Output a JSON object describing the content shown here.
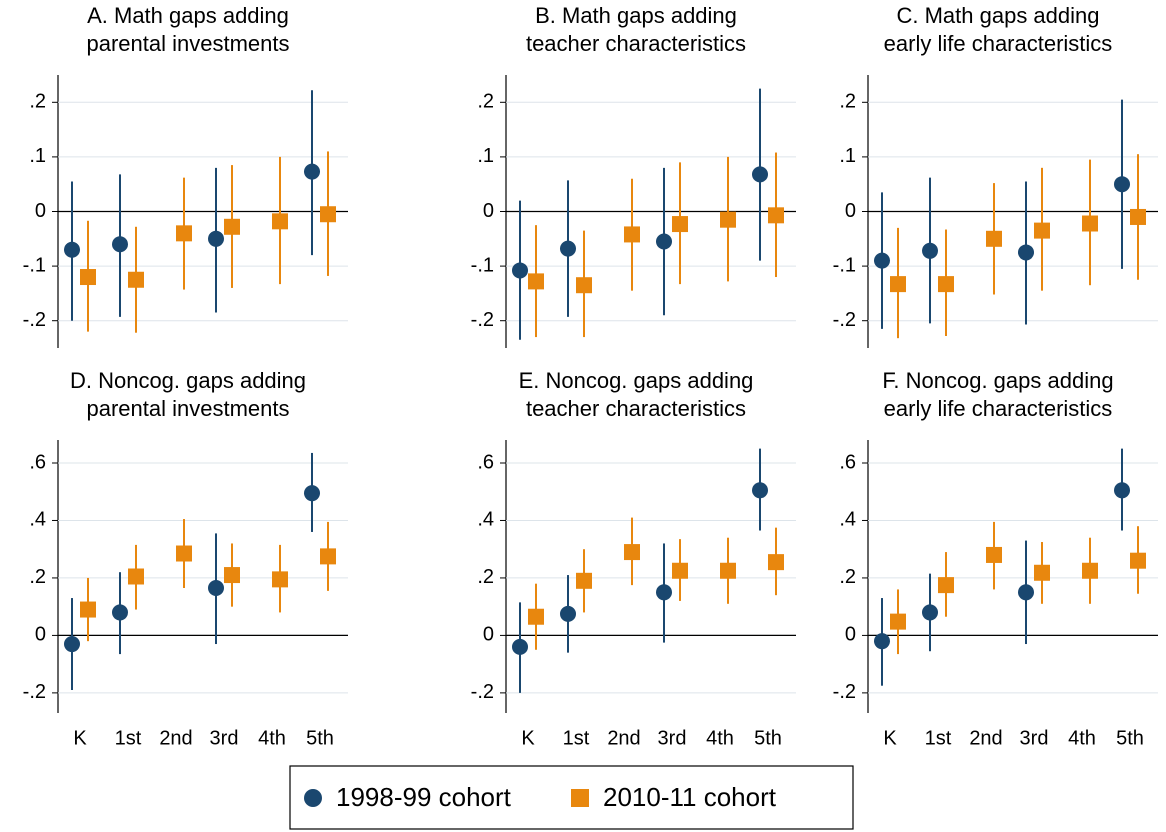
{
  "chart_data": [
    {
      "type": "errorbar",
      "title": [
        "A. Math gaps adding",
        "parental investments"
      ],
      "ylim": [
        -0.25,
        0.25
      ],
      "yticks": [
        {
          "value": -0.2,
          "label": "-.2"
        },
        {
          "value": -0.1,
          "label": "-.1"
        },
        0,
        {
          "value": 0.1,
          "label": ".1"
        },
        {
          "value": 0.2,
          "label": ".2"
        }
      ],
      "series": [
        {
          "name": "1998-99 cohort",
          "color": "#1a476f",
          "marker": "circle",
          "values": [
            -0.07,
            -0.06,
            null,
            -0.05,
            null,
            0.073
          ],
          "lower": [
            -0.2,
            -0.193,
            null,
            -0.185,
            null,
            -0.08
          ],
          "upper": [
            0.055,
            0.068,
            null,
            0.08,
            null,
            0.222
          ]
        },
        {
          "name": "2010-11 cohort",
          "color": "#e8870e",
          "marker": "square",
          "values": [
            -0.12,
            -0.125,
            -0.04,
            -0.028,
            -0.018,
            -0.005
          ],
          "lower": [
            -0.22,
            -0.222,
            -0.143,
            -0.14,
            -0.133,
            -0.118
          ],
          "upper": [
            -0.017,
            -0.028,
            0.062,
            0.085,
            0.1,
            0.11
          ]
        }
      ]
    },
    {
      "type": "errorbar",
      "title": [
        "B. Math gaps adding",
        "teacher characteristics"
      ],
      "ylim": [
        -0.25,
        0.25
      ],
      "yticks": [
        {
          "value": -0.2,
          "label": "-.2"
        },
        {
          "value": -0.1,
          "label": "-.1"
        },
        0,
        {
          "value": 0.1,
          "label": ".1"
        },
        {
          "value": 0.2,
          "label": ".2"
        }
      ],
      "series": [
        {
          "color": "#1a476f",
          "marker": "circle",
          "values": [
            -0.108,
            -0.068,
            null,
            -0.055,
            null,
            0.068
          ],
          "lower": [
            -0.235,
            -0.193,
            null,
            -0.19,
            null,
            -0.09
          ],
          "upper": [
            0.02,
            0.057,
            null,
            0.08,
            null,
            0.225
          ]
        },
        {
          "color": "#e8870e",
          "marker": "square",
          "values": [
            -0.128,
            -0.135,
            -0.042,
            -0.023,
            -0.015,
            -0.007
          ],
          "lower": [
            -0.23,
            -0.23,
            -0.145,
            -0.133,
            -0.128,
            -0.12
          ],
          "upper": [
            -0.025,
            -0.035,
            0.06,
            0.09,
            0.1,
            0.108
          ]
        }
      ]
    },
    {
      "type": "errorbar",
      "title": [
        "C. Math gaps adding",
        "early life characteristics"
      ],
      "ylim": [
        -0.25,
        0.25
      ],
      "yticks": [
        {
          "value": -0.2,
          "label": "-.2"
        },
        {
          "value": -0.1,
          "label": "-.1"
        },
        0,
        {
          "value": 0.1,
          "label": ".1"
        },
        {
          "value": 0.2,
          "label": ".2"
        }
      ],
      "series": [
        {
          "color": "#1a476f",
          "marker": "circle",
          "values": [
            -0.09,
            -0.072,
            null,
            -0.075,
            null,
            0.05
          ],
          "lower": [
            -0.215,
            -0.205,
            null,
            -0.207,
            null,
            -0.105
          ],
          "upper": [
            0.035,
            0.062,
            null,
            0.055,
            null,
            0.205
          ]
        },
        {
          "color": "#e8870e",
          "marker": "square",
          "values": [
            -0.133,
            -0.133,
            -0.05,
            -0.035,
            -0.022,
            -0.01
          ],
          "lower": [
            -0.232,
            -0.228,
            -0.152,
            -0.145,
            -0.135,
            -0.125
          ],
          "upper": [
            -0.03,
            -0.033,
            0.052,
            0.08,
            0.095,
            0.105
          ]
        }
      ]
    },
    {
      "type": "errorbar",
      "title": [
        "D. Noncog. gaps adding",
        "parental investments"
      ],
      "categories": [
        "K",
        "1st",
        "2nd",
        "3rd",
        "4th",
        "5th"
      ],
      "ylim": [
        -0.27,
        0.68
      ],
      "yticks": [
        {
          "value": -0.2,
          "label": "-.2"
        },
        0,
        {
          "value": 0.2,
          "label": ".2"
        },
        {
          "value": 0.4,
          "label": ".4"
        },
        {
          "value": 0.6,
          "label": ".6"
        }
      ],
      "series": [
        {
          "color": "#1a476f",
          "marker": "circle",
          "values": [
            -0.03,
            0.08,
            null,
            0.165,
            null,
            0.495
          ],
          "lower": [
            -0.19,
            -0.065,
            null,
            -0.03,
            null,
            0.36
          ],
          "upper": [
            0.13,
            0.22,
            null,
            0.355,
            null,
            0.635
          ]
        },
        {
          "color": "#e8870e",
          "marker": "square",
          "values": [
            0.09,
            0.205,
            0.285,
            0.21,
            0.195,
            0.275
          ],
          "lower": [
            -0.02,
            0.09,
            0.165,
            0.1,
            0.08,
            0.155
          ],
          "upper": [
            0.2,
            0.315,
            0.405,
            0.32,
            0.315,
            0.395
          ]
        }
      ]
    },
    {
      "type": "errorbar",
      "title": [
        "E. Noncog. gaps adding",
        "teacher characteristics"
      ],
      "categories": [
        "K",
        "1st",
        "2nd",
        "3rd",
        "4th",
        "5th"
      ],
      "ylim": [
        -0.27,
        0.68
      ],
      "yticks": [
        {
          "value": -0.2,
          "label": "-.2"
        },
        0,
        {
          "value": 0.2,
          "label": ".2"
        },
        {
          "value": 0.4,
          "label": ".4"
        },
        {
          "value": 0.6,
          "label": ".6"
        }
      ],
      "series": [
        {
          "color": "#1a476f",
          "marker": "circle",
          "values": [
            -0.04,
            0.075,
            null,
            0.15,
            null,
            0.505
          ],
          "lower": [
            -0.2,
            -0.06,
            null,
            -0.025,
            null,
            0.365
          ],
          "upper": [
            0.115,
            0.21,
            null,
            0.32,
            null,
            0.65
          ]
        },
        {
          "color": "#e8870e",
          "marker": "square",
          "values": [
            0.065,
            0.19,
            0.29,
            0.225,
            0.225,
            0.255
          ],
          "lower": [
            -0.05,
            0.08,
            0.175,
            0.12,
            0.11,
            0.14
          ],
          "upper": [
            0.18,
            0.3,
            0.41,
            0.335,
            0.34,
            0.375
          ]
        }
      ]
    },
    {
      "type": "errorbar",
      "title": [
        "F. Noncog. gaps adding",
        "early life characteristics"
      ],
      "categories": [
        "K",
        "1st",
        "2nd",
        "3rd",
        "4th",
        "5th"
      ],
      "ylim": [
        -0.27,
        0.68
      ],
      "yticks": [
        {
          "value": -0.2,
          "label": "-.2"
        },
        0,
        {
          "value": 0.2,
          "label": ".2"
        },
        {
          "value": 0.4,
          "label": ".4"
        },
        {
          "value": 0.6,
          "label": ".6"
        }
      ],
      "series": [
        {
          "color": "#1a476f",
          "marker": "circle",
          "values": [
            -0.02,
            0.08,
            null,
            0.15,
            null,
            0.505
          ],
          "lower": [
            -0.175,
            -0.055,
            null,
            -0.03,
            null,
            0.365
          ],
          "upper": [
            0.13,
            0.215,
            null,
            0.33,
            null,
            0.65
          ]
        },
        {
          "color": "#e8870e",
          "marker": "square",
          "values": [
            0.048,
            0.175,
            0.28,
            0.218,
            0.225,
            0.26
          ],
          "lower": [
            -0.065,
            0.065,
            0.16,
            0.11,
            0.11,
            0.145
          ],
          "upper": [
            0.16,
            0.29,
            0.395,
            0.325,
            0.34,
            0.38
          ]
        }
      ]
    }
  ]
}
